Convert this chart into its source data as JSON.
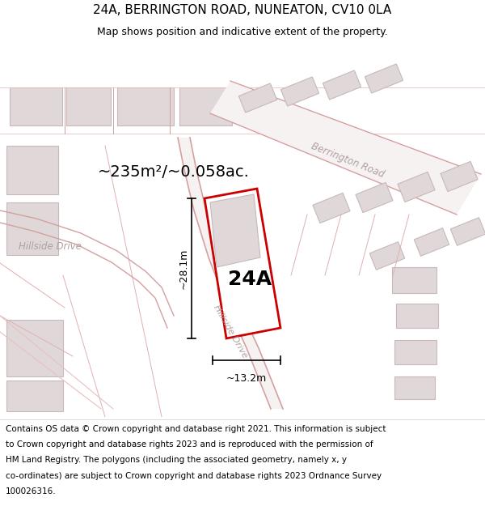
{
  "title": "24A, BERRINGTON ROAD, NUNEATON, CV10 0LA",
  "subtitle": "Map shows position and indicative extent of the property.",
  "footer_lines": [
    "Contains OS data © Crown copyright and database right 2021. This information is subject",
    "to Crown copyright and database rights 2023 and is reproduced with the permission of",
    "HM Land Registry. The polygons (including the associated geometry, namely x, y",
    "co-ordinates) are subject to Crown copyright and database rights 2023 Ordnance Survey",
    "100026316."
  ],
  "area_label": "~235m²/~0.058ac.",
  "plot_label": "24A",
  "dim_width": "~13.2m",
  "dim_height": "~28.1m",
  "bg_color": "#f2eded",
  "plot_fill": "#ffffff",
  "plot_stroke": "#cc0000",
  "building_fill": "#e0d8d8",
  "building_stroke": "#c8b8b8",
  "road_fill": "#f7f2f2",
  "road_line": "#e8c0c0",
  "road_line2": "#d4a0a0",
  "label_color": "#b0a0a0",
  "title_fontsize": 11,
  "subtitle_fontsize": 9,
  "footer_fontsize": 7.5,
  "area_fontsize": 14,
  "plot_label_fontsize": 18,
  "dim_fontsize": 9
}
